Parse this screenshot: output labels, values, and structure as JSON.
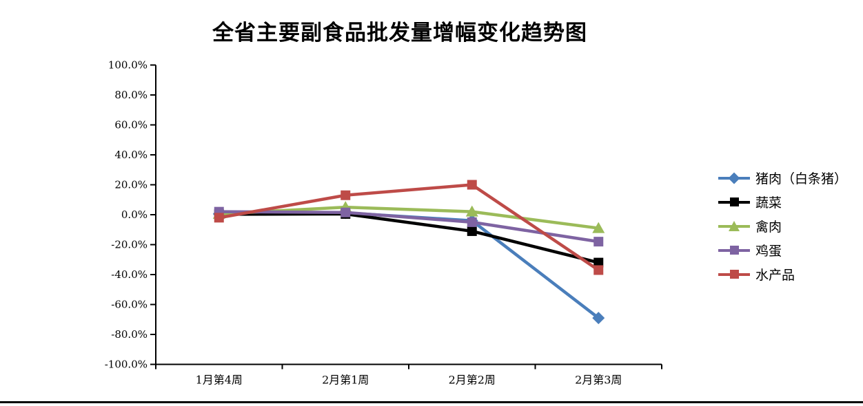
{
  "chart_data": {
    "type": "line",
    "title": "全省主要副食品批发量增幅变化趋势图",
    "categories": [
      "1月第4周",
      "2月第1周",
      "2月第2周",
      "2月第3周"
    ],
    "series": [
      {
        "name": "猪肉（白条猪）",
        "color": "#4A7EBB",
        "marker": "diamond",
        "values": [
          0.5,
          1.2,
          -4,
          -69
        ]
      },
      {
        "name": "蔬菜",
        "color": "#000000",
        "marker": "square",
        "values": [
          0.3,
          0.5,
          -11,
          -32
        ]
      },
      {
        "name": "禽肉",
        "color": "#9BBB59",
        "marker": "triangle",
        "values": [
          0.5,
          5,
          2,
          -9
        ]
      },
      {
        "name": "鸡蛋",
        "color": "#7E63A2",
        "marker": "square",
        "values": [
          2,
          1.5,
          -5,
          -18
        ]
      },
      {
        "name": "水产品",
        "color": "#BE4B48",
        "marker": "square",
        "values": [
          -2,
          13,
          20,
          -37
        ]
      }
    ],
    "ylabel": "",
    "xlabel": "",
    "ylim": [
      -100,
      100
    ],
    "y_tick_step": 20,
    "y_tick_labels": [
      "100.0%",
      "80.0%",
      "60.0%",
      "40.0%",
      "20.0%",
      "0.0%",
      "-20.0%",
      "-40.0%",
      "-60.0%",
      "-80.0%",
      "-100.0%"
    ],
    "grid": false,
    "legend_position": "right",
    "axis_color": "#000000",
    "background_color": "#ffffff"
  }
}
